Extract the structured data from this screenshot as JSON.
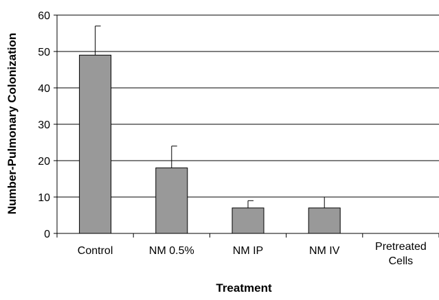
{
  "chart_data": {
    "type": "bar",
    "title": "",
    "xlabel": "Treatment",
    "ylabel": "Number-Pulmonary Colonization",
    "categories": [
      "Control",
      "NM 0.5%",
      "NM IP",
      "NM IV",
      "Pretreated\nCells"
    ],
    "values": [
      49,
      18,
      7,
      7,
      0
    ],
    "error_plus": [
      8,
      6,
      2,
      3,
      0
    ],
    "ylim": [
      0,
      60
    ],
    "yticks": [
      0,
      10,
      20,
      30,
      40,
      50,
      60
    ],
    "grid": true,
    "legend": "none",
    "colors": {
      "bar": "#999999",
      "bar_stroke": "#000000",
      "grid": "#000000"
    }
  }
}
